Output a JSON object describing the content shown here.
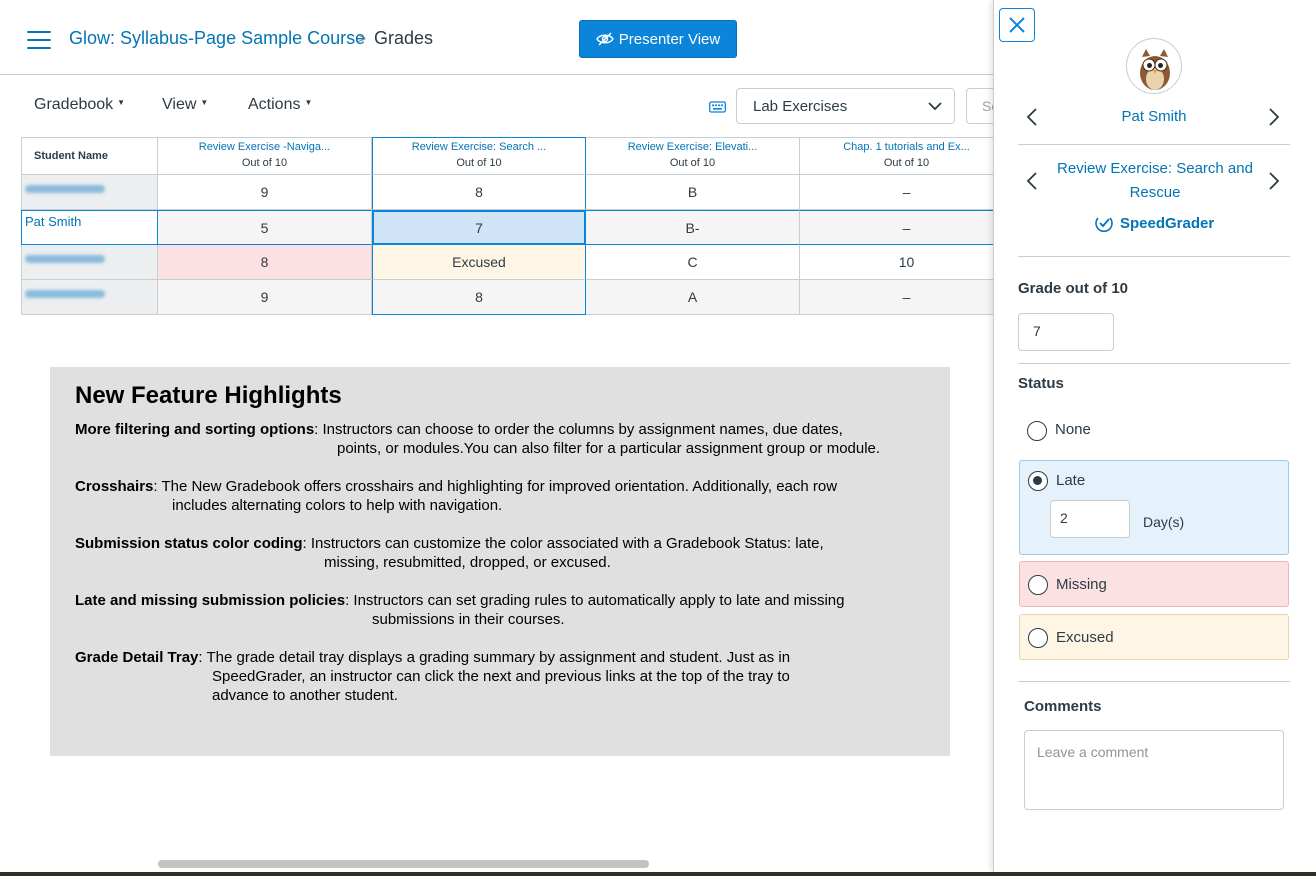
{
  "header": {
    "course": "Glow: Syllabus-Page Sample Course",
    "separator": ">",
    "page": "Grades",
    "presenter_button": "Presenter View"
  },
  "toolbar": {
    "menus": [
      "Gradebook",
      "View",
      "Actions"
    ],
    "filter_selected": "Lab Exercises",
    "search_placeholder": "Se"
  },
  "gradebook": {
    "name_header": "Student Name",
    "columns": [
      {
        "title": "Review Exercise -Naviga...",
        "points": "Out of 10"
      },
      {
        "title": "Review Exercise: Search ...",
        "points": "Out of 10"
      },
      {
        "title": "Review Exercise: Elevati...",
        "points": "Out of 10"
      },
      {
        "title": "Chap. 1 tutorials and Ex...",
        "points": "Out of 10"
      }
    ],
    "rows": [
      {
        "name": "",
        "cells": [
          "9",
          "8",
          "B",
          "–"
        ]
      },
      {
        "name": "Pat Smith",
        "cells": [
          "5",
          "7",
          "B-",
          "–"
        ]
      },
      {
        "name": "",
        "cells": [
          "8",
          "Excused",
          "C",
          "10"
        ]
      },
      {
        "name": "",
        "cells": [
          "9",
          "8",
          "A",
          "–"
        ]
      }
    ]
  },
  "features": {
    "title": "New Feature Highlights",
    "items": [
      {
        "label": "More filtering and sorting options",
        "text": ": Instructors can choose to order the columns by assignment names, due dates,",
        "cont": "points, or modules.You can also filter for a particular assignment group or module."
      },
      {
        "label": "Crosshairs",
        "text": ":  The New Gradebook offers crosshairs and highlighting for improved orientation. Additionally, each row",
        "cont": "includes alternating colors to help with navigation."
      },
      {
        "label": "Submission status color coding",
        "text": ": Instructors can customize the color associated with a Gradebook Status: late,",
        "cont": "missing, resubmitted, dropped, or excused."
      },
      {
        "label": "Late and missing submission policies",
        "text": ": Instructors can set grading rules to automatically apply to late and missing",
        "cont": "submissions in their courses."
      },
      {
        "label": "Grade Detail Tray",
        "text": ": The grade detail tray displays a grading summary by assignment and student. Just as in",
        "cont": "SpeedGrader, an instructor can click the next and previous links at the top of the tray to",
        "cont2": "advance to another student."
      }
    ]
  },
  "tray": {
    "student": "Pat Smith",
    "assignment": "Review Exercise: Search and Rescue",
    "speedgrader": "SpeedGrader",
    "grade_label": "Grade out of 10",
    "grade_value": "7",
    "status_label": "Status",
    "status_options": [
      "None",
      "Late",
      "Missing",
      "Excused"
    ],
    "selected_status": "Late",
    "late_days": "2",
    "days_label": "Day(s)",
    "comments_label": "Comments",
    "comment_placeholder": "Leave a comment"
  },
  "colors": {
    "link": "#0374b5",
    "primary_button": "#0a85d9",
    "late": "#fef5e5",
    "missing": "#fbe1e1",
    "late_option": "#e5f2fb"
  }
}
